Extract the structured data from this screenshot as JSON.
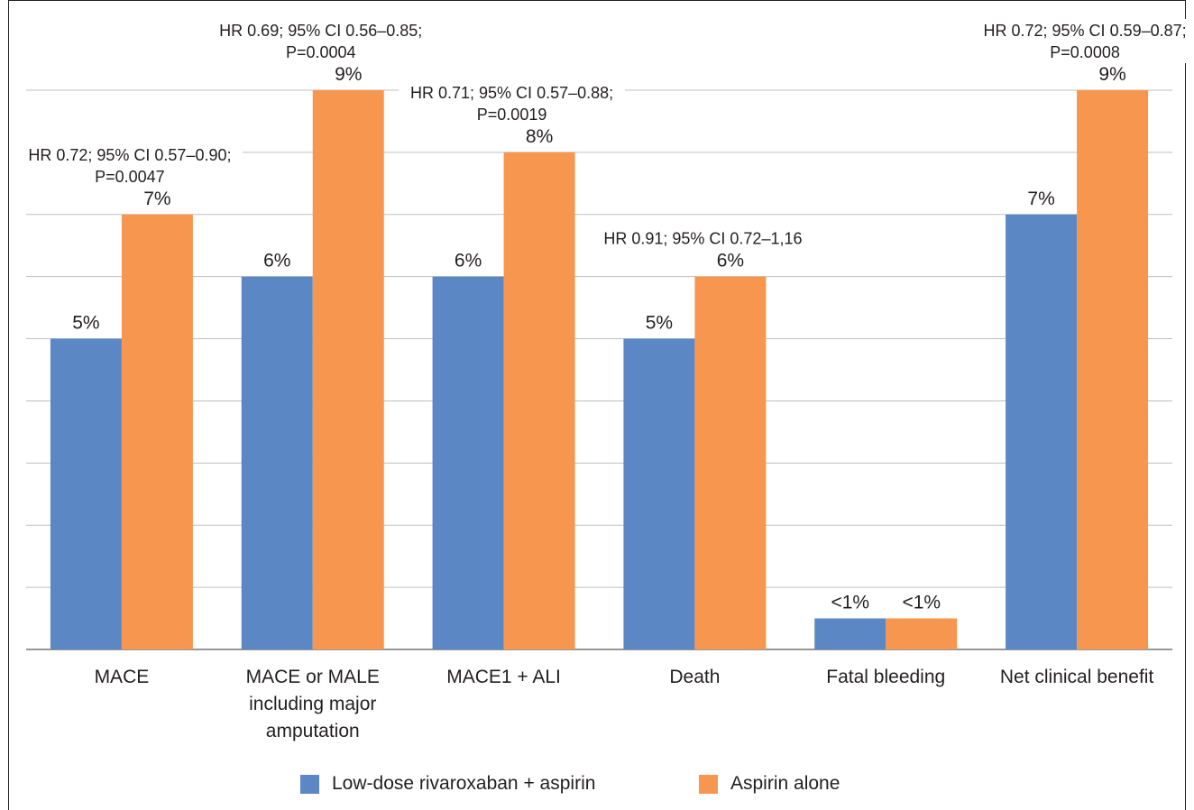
{
  "chart_data": {
    "type": "bar",
    "title": "",
    "xlabel": "",
    "ylabel": "",
    "ylim": [
      0,
      9
    ],
    "grid": true,
    "legend_position": "bottom",
    "categories": [
      "MACE",
      "MACE or MALE including major amputation",
      "MACE1 + ALI",
      "Death",
      "Fatal bleeding",
      "Net clinical benefit"
    ],
    "category_lines": [
      [
        "MACE"
      ],
      [
        "MACE or MALE",
        "including major",
        "amputation"
      ],
      [
        "MACE1 + ALI"
      ],
      [
        "Death"
      ],
      [
        "Fatal bleeding"
      ],
      [
        "Net clinical benefit"
      ]
    ],
    "series": [
      {
        "name": "Low-dose rivaroxaban + aspirin",
        "color": "#5b87c4",
        "values": [
          5,
          6,
          6,
          5,
          0.5,
          7
        ],
        "labels": [
          "5%",
          "6%",
          "6%",
          "5%",
          "<1%",
          "7%"
        ]
      },
      {
        "name": "Aspirin alone",
        "color": "#f7964f",
        "values": [
          7,
          9,
          8,
          6,
          0.5,
          9
        ],
        "labels": [
          "7%",
          "9%",
          "8%",
          "6%",
          "<1%",
          "9%"
        ]
      }
    ],
    "annotations": [
      {
        "category": 0,
        "lines": [
          "HR 0.72; 95% CI 0.57–0.90;",
          "P=0.0047"
        ]
      },
      {
        "category": 1,
        "lines": [
          "HR 0.69; 95% CI 0.56–0.85;",
          "P=0.0004"
        ]
      },
      {
        "category": 2,
        "lines": [
          "HR 0.71; 95% CI 0.57–0.88;",
          "P=0.0019"
        ]
      },
      {
        "category": 3,
        "lines": [
          "HR 0.91; 95% CI 0.72–1,16"
        ]
      },
      {
        "category": 5,
        "lines": [
          "HR 0.72; 95% CI 0.59–0.87;",
          "P=0.0008"
        ]
      }
    ]
  }
}
